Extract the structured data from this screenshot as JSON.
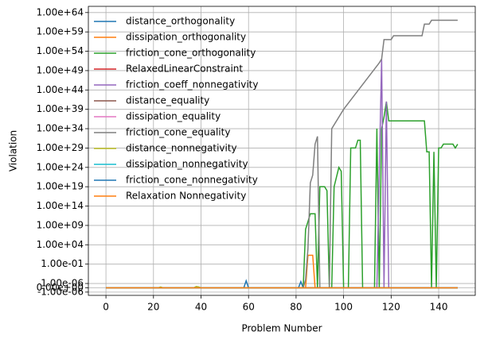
{
  "chart_data": {
    "type": "line",
    "xlabel": "Problem Number",
    "ylabel": "Violation",
    "yscale": "symlog",
    "linthresh": 1e-06,
    "grid": true,
    "legend": "upper left",
    "xlim": [
      -7.4,
      155.4
    ],
    "xticks": [
      0,
      20,
      40,
      60,
      80,
      100,
      120,
      140
    ],
    "ylim": [
      -7e-06,
      4e+65
    ],
    "yticks": [
      {
        "value": 1e+64,
        "label": "1.00e+64"
      },
      {
        "value": 1e+59,
        "label": "1.00e+59"
      },
      {
        "value": 1e+54,
        "label": "1.00e+54"
      },
      {
        "value": 1e+49,
        "label": "1.00e+49"
      },
      {
        "value": 1e+44,
        "label": "1.00e+44"
      },
      {
        "value": 1e+39,
        "label": "1.00e+39"
      },
      {
        "value": 1e+34,
        "label": "1.00e+34"
      },
      {
        "value": 1e+29,
        "label": "1.00e+29"
      },
      {
        "value": 1e+24,
        "label": "1.00e+24"
      },
      {
        "value": 1e+19,
        "label": "1.00e+19"
      },
      {
        "value": 100000000000000.0,
        "label": "1.00e+14"
      },
      {
        "value": 1000000000.0,
        "label": "1.00e+09"
      },
      {
        "value": 10000.0,
        "label": "1.00e+04"
      },
      {
        "value": 0.1,
        "label": "1.00e-01"
      },
      {
        "value": 1e-06,
        "label": "1.00e-06"
      },
      {
        "value": 0,
        "label": "0.00e+00"
      },
      {
        "value": -1e-06,
        "label": "-1.00e-06"
      }
    ],
    "series": [
      {
        "name": "distance_orthogonality",
        "color": "#1f77b4",
        "x": [
          0,
          58,
          59,
          60,
          81,
          82,
          83,
          148
        ],
        "values": [
          0,
          0,
          5e-06,
          0,
          0,
          3e-06,
          0,
          0
        ]
      },
      {
        "name": "dissipation_orthogonality",
        "color": "#ff7f0e",
        "x": [
          0,
          84,
          85,
          87,
          88,
          148
        ],
        "values": [
          0,
          0,
          20,
          20,
          0,
          0
        ]
      },
      {
        "name": "friction_cone_orthogonality",
        "color": "#2ca02c",
        "x": [
          0,
          83,
          84,
          85,
          86,
          88,
          89,
          90,
          92,
          93,
          94,
          95,
          96,
          98,
          99,
          100,
          102,
          103,
          105,
          106,
          107,
          108,
          113,
          114,
          115,
          116,
          117,
          118,
          119,
          134,
          135,
          136,
          137,
          138,
          139,
          140,
          141,
          142,
          145,
          146,
          147,
          148
        ],
        "values": [
          0,
          0,
          100000000.0,
          10000000000.0,
          1000000000000.0,
          1000000000000.0,
          0,
          1e+19,
          1e+19,
          1e+18,
          0,
          0,
          1e+19,
          1e+24,
          1e+23,
          0,
          0,
          1e+29,
          1e+29,
          1e+31,
          1e+31,
          0,
          0,
          1e+34,
          0,
          1e+34,
          1e+37,
          1e+41,
          1e+36,
          1e+36,
          1e+28,
          1e+28,
          0,
          1e+28,
          0,
          1e+29,
          1e+29,
          1e+30,
          1e+30,
          1e+30,
          1e+29,
          1e+30
        ]
      },
      {
        "name": "RelaxedLinearConstraint",
        "color": "#d62728",
        "x": [
          0,
          148
        ],
        "values": [
          0,
          0
        ]
      },
      {
        "name": "friction_coeff_nonnegativity",
        "color": "#9467bd",
        "x": [
          0,
          114,
          116,
          117,
          118,
          119,
          148
        ],
        "values": [
          0,
          0,
          1e+52,
          0,
          1e+41,
          0,
          0
        ]
      },
      {
        "name": "distance_equality",
        "color": "#8c564b",
        "x": [
          0,
          148
        ],
        "values": [
          0,
          0
        ]
      },
      {
        "name": "dissipation_equality",
        "color": "#e377c2",
        "x": [
          0,
          148
        ],
        "values": [
          0,
          0
        ]
      },
      {
        "name": "friction_cone_equality",
        "color": "#7f7f7f",
        "x": [
          0,
          83,
          84,
          85,
          86,
          87,
          88,
          89,
          90,
          94,
          95,
          100,
          105,
          110,
          115,
          116,
          117,
          118,
          120,
          121,
          133,
          134,
          136,
          137,
          148
        ],
        "values": [
          0,
          0,
          1e-05,
          1000.0,
          1e+20,
          1e+22,
          1e+30,
          1e+32,
          0,
          0,
          1e+34,
          1e+39,
          1e+43,
          1e+47,
          1e+51,
          1e+52,
          1e+57,
          1e+57,
          1e+57,
          1e+58,
          1e+58,
          1e+61,
          1e+61,
          1e+62,
          1e+62
        ]
      },
      {
        "name": "distance_nonnegativity",
        "color": "#bcbd22",
        "x": [
          0,
          22,
          23,
          24,
          37,
          38,
          39,
          40,
          41,
          148
        ],
        "values": [
          0,
          0,
          2e-07,
          0,
          0,
          3e-07,
          2e-07,
          0,
          0,
          0
        ]
      },
      {
        "name": "dissipation_nonnegativity",
        "color": "#17becf",
        "x": [
          0,
          148
        ],
        "values": [
          0,
          0
        ]
      },
      {
        "name": "friction_cone_nonnegativity",
        "color": "#1f77b4",
        "x": [
          0,
          148
        ],
        "values": [
          0,
          0
        ]
      },
      {
        "name": "Relaxation Nonnegativity",
        "color": "#ff7f0e",
        "x": [
          0,
          148
        ],
        "values": [
          0,
          0
        ]
      }
    ]
  }
}
